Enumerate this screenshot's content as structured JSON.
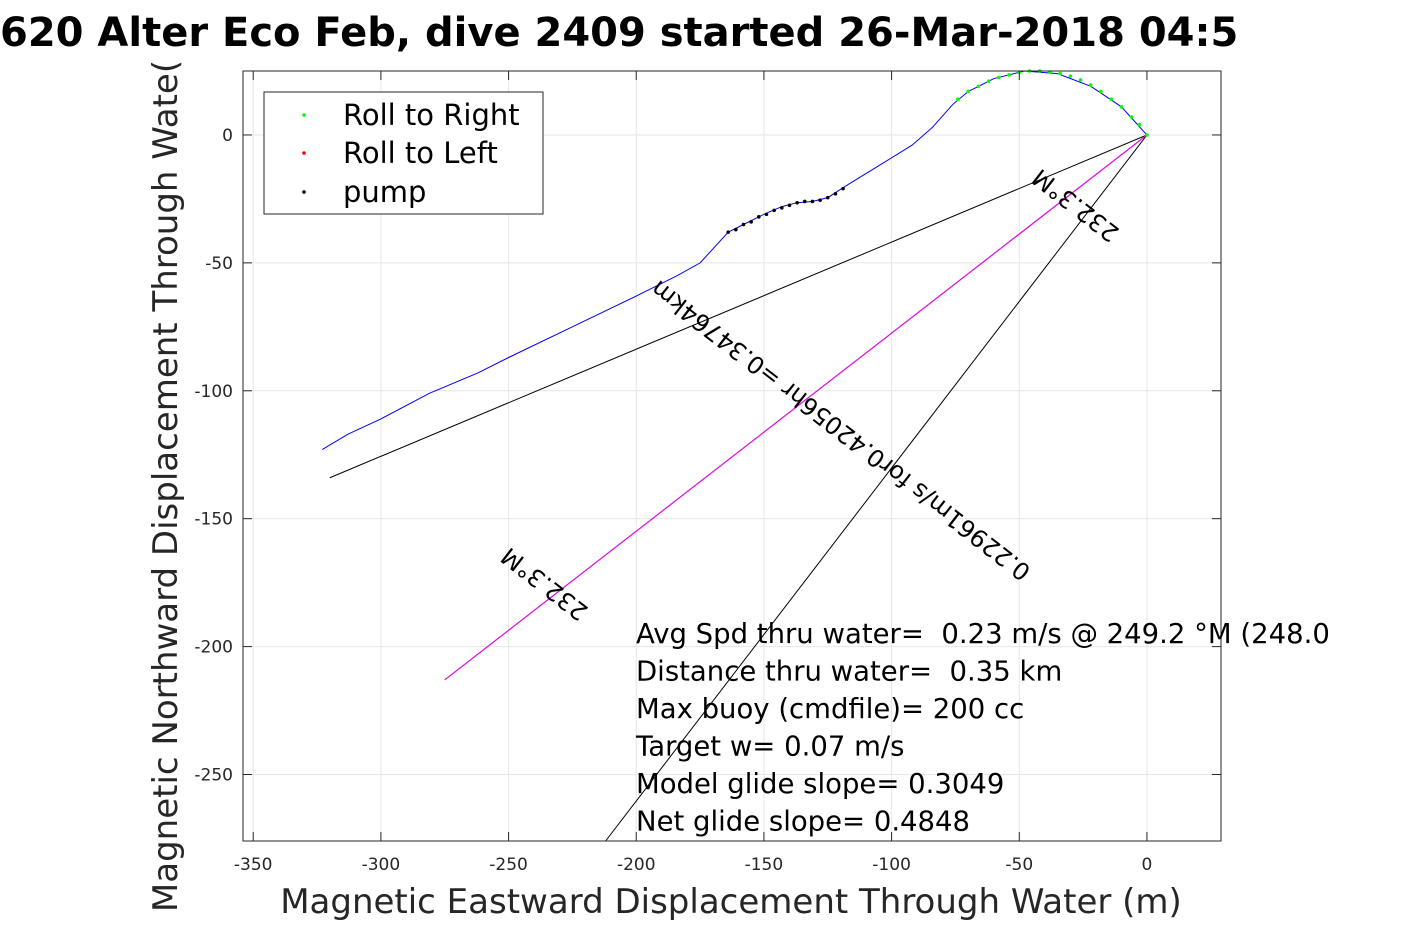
{
  "chart_data": {
    "type": "line",
    "title": "620 Alter Eco Feb, dive 2409 started 26-Mar-2018 04:5",
    "xlabel": "Magnetic Eastward Displacement Through Water (m)",
    "ylabel": "Magnetic Northward Displacement Through Wate(",
    "xlim": [
      -354,
      29
    ],
    "ylim": [
      -276,
      25
    ],
    "x_ticks": [
      -350,
      -300,
      -250,
      -200,
      -150,
      -100,
      -50,
      0
    ],
    "y_ticks": [
      -250,
      -200,
      -150,
      -100,
      -50,
      0
    ],
    "x_tick_labels": [
      "-350",
      "-300",
      "-250",
      "-200",
      "-150",
      "-100",
      "-50",
      "0"
    ],
    "y_tick_labels": [
      "-250",
      "-200",
      "-150",
      "-100",
      "-50",
      "0"
    ],
    "grid": true,
    "legend": {
      "placement": "top-left",
      "entries": [
        {
          "label": "Roll to Right",
          "color": "#00ff00"
        },
        {
          "label": "Roll to Left",
          "color": "#ff0000"
        },
        {
          "label": "pump",
          "color": "#000000"
        }
      ]
    },
    "series": [
      {
        "kind": "track",
        "color": "#0000ff",
        "points": [
          [
            -323,
            -123
          ],
          [
            -313,
            -117
          ],
          [
            -300,
            -111
          ],
          [
            -281,
            -101
          ],
          [
            -262,
            -93
          ],
          [
            -250,
            -87
          ],
          [
            -225,
            -75
          ],
          [
            -200,
            -63
          ],
          [
            -184,
            -55
          ],
          [
            -175,
            -50
          ],
          [
            -164,
            -38
          ],
          [
            -158,
            -35
          ],
          [
            -150,
            -31
          ],
          [
            -143,
            -28
          ],
          [
            -137,
            -26.5
          ],
          [
            -131,
            -26
          ],
          [
            -125,
            -24.5
          ],
          [
            -118,
            -20
          ],
          [
            -105,
            -12
          ],
          [
            -92,
            -4
          ],
          [
            -84,
            3
          ],
          [
            -76,
            12
          ],
          [
            -70,
            17
          ],
          [
            -60,
            22
          ],
          [
            -48,
            25
          ],
          [
            -35,
            24
          ],
          [
            -22,
            19
          ],
          [
            -10,
            11
          ],
          [
            0,
            0
          ]
        ]
      },
      {
        "kind": "markers",
        "name": "Roll to Right",
        "color": "#00ff00",
        "points": [
          [
            -74,
            14
          ],
          [
            -70,
            17
          ],
          [
            -66,
            19
          ],
          [
            -62,
            21
          ],
          [
            -58,
            22.5
          ],
          [
            -54,
            23.5
          ],
          [
            -50,
            24.5
          ],
          [
            -46,
            25
          ],
          [
            -42,
            25
          ],
          [
            -38,
            24.5
          ],
          [
            -34,
            24
          ],
          [
            -30,
            23
          ],
          [
            -26,
            21.5
          ],
          [
            -22,
            19.5
          ],
          [
            -18,
            17
          ],
          [
            -14,
            14
          ],
          [
            -10,
            11
          ],
          [
            -6,
            7
          ],
          [
            -3,
            4
          ],
          [
            0,
            0
          ]
        ]
      },
      {
        "kind": "markers",
        "name": "Roll to Left",
        "color": "#ff0000",
        "points": []
      },
      {
        "kind": "markers",
        "name": "pump",
        "color": "#000000",
        "points": [
          [
            -164,
            -38
          ],
          [
            -161,
            -37
          ],
          [
            -158,
            -35
          ],
          [
            -155,
            -34
          ],
          [
            -152,
            -32
          ],
          [
            -149,
            -31
          ],
          [
            -146,
            -29.5
          ],
          [
            -143,
            -28.5
          ],
          [
            -140,
            -27.5
          ],
          [
            -137,
            -26.5
          ],
          [
            -134,
            -26
          ],
          [
            -131,
            -26
          ],
          [
            -128,
            -25.5
          ],
          [
            -125,
            -24.5
          ],
          [
            -122,
            -23
          ],
          [
            -119,
            -21
          ]
        ]
      }
    ],
    "lines": [
      {
        "color": "#000000",
        "from": [
          0,
          0
        ],
        "to": [
          -320,
          -134
        ]
      },
      {
        "color": "#000000",
        "from": [
          0,
          0
        ],
        "to": [
          -212,
          -276
        ]
      },
      {
        "color": "#000000",
        "from": [
          0,
          0
        ],
        "to": [
          -275,
          -213
        ]
      },
      {
        "color": "#ff00ff",
        "from": [
          0,
          0
        ],
        "to": [
          -275,
          -213
        ]
      }
    ],
    "annotations": [
      {
        "text": "232.3°M",
        "x": -26,
        "y": -25,
        "angle": 217.8,
        "font_size": 24
      },
      {
        "text": "0.22961m/s for0.42056hr =0.34764km",
        "x": -118,
        "y": -113,
        "angle": 217.8,
        "font_size": 24
      },
      {
        "text": "232.3°M",
        "x": -234,
        "y": -173,
        "angle": 217.8,
        "font_size": 24
      }
    ],
    "text_box": {
      "lines": [
        "Avg Spd thru water=  0.23 m/s @ 249.2 °M (248.0",
        "Distance thru water=  0.35 km",
        "Max buoy (cmdfile)= 200 cc",
        "Target w= 0.07 m/s",
        "Model glide slope= 0.3049",
        "Net glide slope= 0.4848"
      ]
    }
  }
}
